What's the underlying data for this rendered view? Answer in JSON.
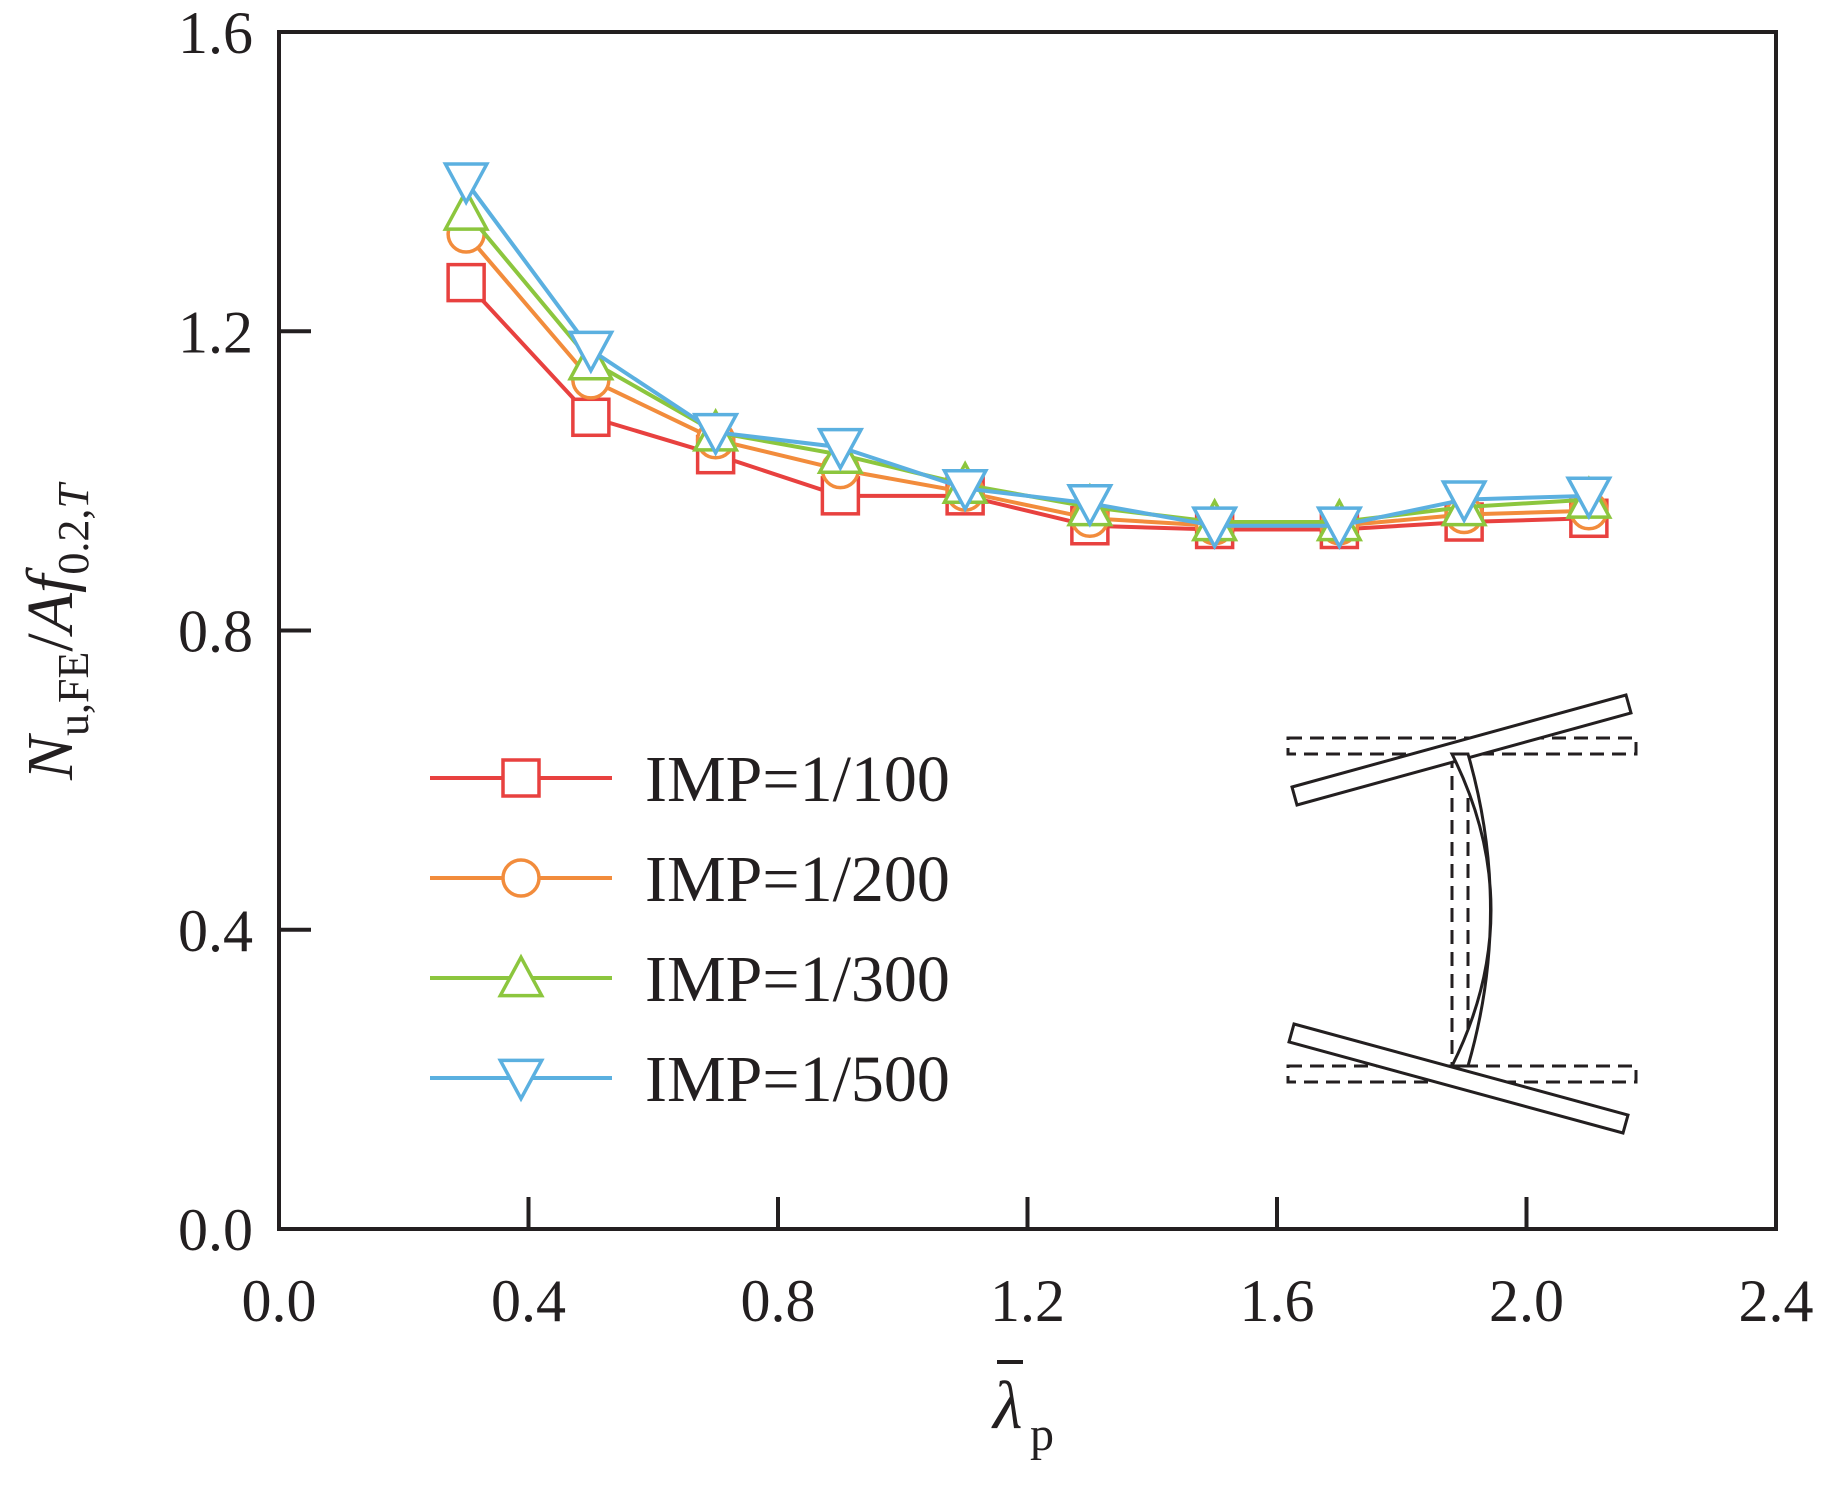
{
  "chart_data": {
    "type": "line",
    "title": "",
    "xlabel": {
      "base": "λ",
      "sub": "p",
      "overbar": true
    },
    "ylabel": {
      "n": "N",
      "n_sub": "u,FE",
      "slash": "/",
      "a": "A",
      "f": "f",
      "f_sub": "0.2,",
      "t": "T"
    },
    "xlim": [
      0.0,
      2.4
    ],
    "ylim": [
      0.0,
      1.6
    ],
    "xticks": [
      "0.0",
      "0.4",
      "0.8",
      "1.2",
      "1.6",
      "2.0",
      "2.4"
    ],
    "yticks": [
      "0.0",
      "0.4",
      "0.8",
      "1.2",
      "1.6"
    ],
    "grid": false,
    "legend_position": "left-center",
    "x": [
      0.3,
      0.5,
      0.7,
      0.9,
      1.1,
      1.3,
      1.5,
      1.7,
      1.9,
      2.1
    ],
    "series": [
      {
        "name": "IMP=1/100",
        "marker": "square",
        "color": "#e8413f",
        "values": [
          1.265,
          1.085,
          1.035,
          0.98,
          0.98,
          0.94,
          0.935,
          0.935,
          0.945,
          0.95
        ]
      },
      {
        "name": "IMP=1/200",
        "marker": "circle",
        "color": "#f28c3c",
        "values": [
          1.33,
          1.135,
          1.055,
          1.015,
          0.985,
          0.95,
          0.94,
          0.94,
          0.955,
          0.96
        ]
      },
      {
        "name": "IMP=1/300",
        "marker": "triangle-up",
        "color": "#8cc63e",
        "values": [
          1.36,
          1.16,
          1.065,
          1.035,
          0.995,
          0.965,
          0.945,
          0.945,
          0.965,
          0.975
        ]
      },
      {
        "name": "IMP=1/500",
        "marker": "triangle-down",
        "color": "#5bb0e0",
        "values": [
          1.4,
          1.175,
          1.065,
          1.045,
          0.99,
          0.97,
          0.94,
          0.94,
          0.975,
          0.98
        ]
      }
    ]
  }
}
